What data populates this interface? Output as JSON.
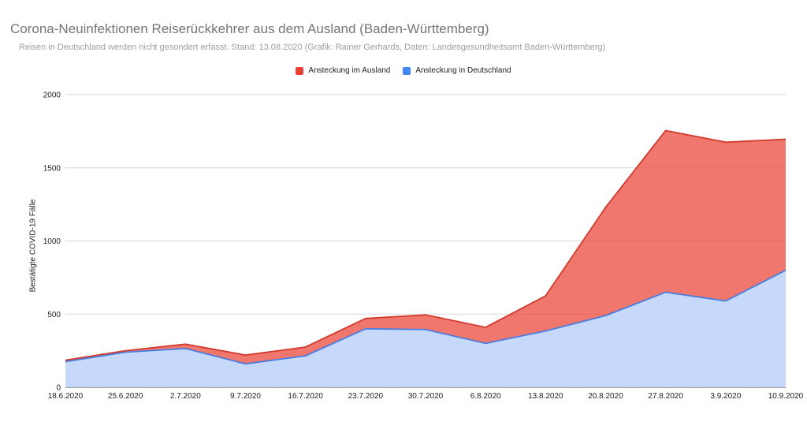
{
  "chart_data": {
    "type": "area",
    "stacked": true,
    "title": "Corona-Neuinfektionen Reiserückkehrer aus dem Ausland (Baden-Württemberg)",
    "subtitle": "Reisen in Deutschland werden nicht gesondert erfasst. Stand: 13.08.2020 (Grafik: Rainer Gerhards, Daten: Landesgesundheitsamt Baden-Württemberg)",
    "xlabel": "",
    "ylabel": "Bestätigte COVID-19 Fälle",
    "ylim": [
      0,
      2000
    ],
    "yticks": [
      "0",
      "500",
      "1000",
      "1500",
      "2000"
    ],
    "legend_position": "top-center",
    "categories": [
      "18.6.2020",
      "25.6.2020",
      "2.7.2020",
      "9.7.2020",
      "16.7.2020",
      "23.7.2020",
      "30.7.2020",
      "6.8.2020",
      "13.8.2020",
      "20.8.2020",
      "27.8.2020",
      "3.9.2020",
      "10.9.2020"
    ],
    "series": [
      {
        "name": "Ansteckung in Deutschland",
        "color": "#4285f4",
        "values": [
          175,
          240,
          265,
          160,
          215,
          400,
          395,
          300,
          385,
          490,
          650,
          590,
          800
        ]
      },
      {
        "name": "Ansteckung im Ausland",
        "color": "#ea4335",
        "values": [
          10,
          10,
          30,
          60,
          60,
          70,
          100,
          110,
          240,
          740,
          1105,
          1085,
          895
        ]
      }
    ]
  }
}
